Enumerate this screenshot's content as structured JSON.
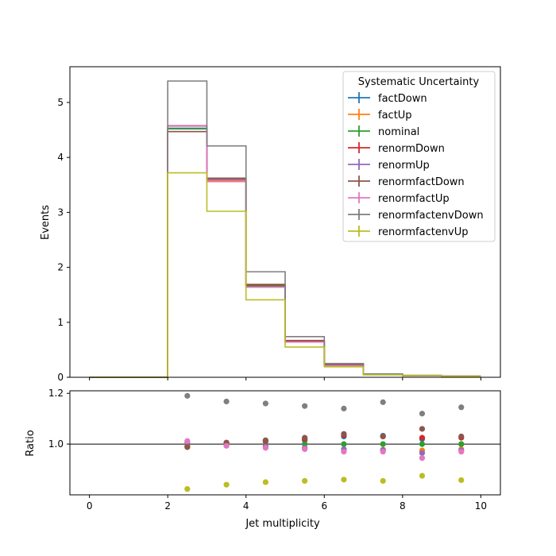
{
  "chart_data": [
    {
      "type": "line",
      "subtype": "step-histogram",
      "title": "",
      "xlabel": "",
      "ylabel": "Events",
      "xlim": [
        -0.5,
        10.5
      ],
      "ylim": [
        0,
        5.65
      ],
      "x_edges": [
        0,
        1,
        2,
        3,
        4,
        5,
        6,
        7,
        8,
        9,
        10
      ],
      "y_ticks": [
        "0",
        "1",
        "2",
        "3",
        "4",
        "5"
      ],
      "legend_title": "Systematic Uncertainty",
      "legend_position": "top-right",
      "series": [
        {
          "name": "factDown",
          "color": "#1f77b4",
          "values": [
            0,
            0,
            4.52,
            3.62,
            1.68,
            0.66,
            0.23,
            0.05,
            0.03,
            0.02
          ]
        },
        {
          "name": "factUp",
          "color": "#ff7f0e",
          "values": [
            0,
            0,
            4.53,
            3.58,
            1.65,
            0.64,
            0.22,
            0.05,
            0.03,
            0.02
          ]
        },
        {
          "name": "nominal",
          "color": "#2ca02c",
          "values": [
            0,
            0,
            4.53,
            3.6,
            1.66,
            0.65,
            0.22,
            0.05,
            0.03,
            0.02
          ]
        },
        {
          "name": "renormDown",
          "color": "#d62728",
          "values": [
            0,
            0,
            4.47,
            3.62,
            1.68,
            0.66,
            0.23,
            0.05,
            0.03,
            0.02
          ]
        },
        {
          "name": "renormUp",
          "color": "#9467bd",
          "values": [
            0,
            0,
            4.57,
            3.6,
            1.64,
            0.64,
            0.22,
            0.05,
            0.03,
            0.02
          ]
        },
        {
          "name": "renormfactDown",
          "color": "#8c564b",
          "values": [
            0,
            0,
            4.47,
            3.62,
            1.69,
            0.67,
            0.23,
            0.05,
            0.03,
            0.02
          ]
        },
        {
          "name": "renormfactUp",
          "color": "#e377c2",
          "values": [
            0,
            0,
            4.58,
            3.56,
            1.64,
            0.64,
            0.21,
            0.05,
            0.03,
            0.02
          ]
        },
        {
          "name": "renormfactenvDown",
          "color": "#7f7f7f",
          "values": [
            0,
            0,
            5.39,
            4.21,
            1.92,
            0.74,
            0.25,
            0.06,
            0.035,
            0.025
          ]
        },
        {
          "name": "renormfactenvUp",
          "color": "#bcbd22",
          "values": [
            0,
            0,
            3.72,
            3.02,
            1.41,
            0.55,
            0.19,
            0.045,
            0.03,
            0.02
          ]
        }
      ]
    },
    {
      "type": "scatter",
      "title": "",
      "xlabel": "Jet multiplicity",
      "ylabel": "Ratio",
      "xlim": [
        -0.5,
        10.5
      ],
      "ylim": [
        0.8,
        1.21
      ],
      "x_ticks": [
        "0",
        "2",
        "4",
        "6",
        "8",
        "10"
      ],
      "y_ticks": [
        "1.0",
        "1.2"
      ],
      "reference_line": 1.0,
      "x": [
        2.5,
        3.5,
        4.5,
        5.5,
        6.5,
        7.5,
        8.5,
        9.5
      ],
      "series": [
        {
          "name": "factDown",
          "color": "#1f77b4",
          "values": [
            1.0,
            1.005,
            1.012,
            1.015,
            1.03,
            1.033,
            1.02,
            1.0
          ]
        },
        {
          "name": "factUp",
          "color": "#ff7f0e",
          "values": [
            1.0,
            0.995,
            0.99,
            0.985,
            0.98,
            0.978,
            0.975,
            0.98
          ]
        },
        {
          "name": "nominal",
          "color": "#2ca02c",
          "values": [
            1.0,
            1.0,
            1.0,
            1.0,
            1.0,
            1.0,
            1.0,
            1.0
          ]
        },
        {
          "name": "renormDown",
          "color": "#d62728",
          "values": [
            0.99,
            1.005,
            1.012,
            1.02,
            1.035,
            1.03,
            1.025,
            1.025
          ]
        },
        {
          "name": "renormUp",
          "color": "#9467bd",
          "values": [
            1.008,
            0.997,
            0.99,
            0.985,
            0.98,
            0.977,
            0.965,
            0.975
          ]
        },
        {
          "name": "renormfactDown",
          "color": "#8c564b",
          "values": [
            0.988,
            1.006,
            1.015,
            1.025,
            1.04,
            1.03,
            1.06,
            1.03
          ]
        },
        {
          "name": "renormfactUp",
          "color": "#e377c2",
          "values": [
            1.012,
            0.993,
            0.985,
            0.98,
            0.97,
            0.97,
            0.945,
            0.97
          ]
        },
        {
          "name": "renormfactenvDown",
          "color": "#7f7f7f",
          "values": [
            1.19,
            1.168,
            1.16,
            1.15,
            1.14,
            1.165,
            1.12,
            1.145
          ]
        },
        {
          "name": "renormfactenvUp",
          "color": "#bcbd22",
          "values": [
            0.823,
            0.84,
            0.85,
            0.855,
            0.86,
            0.855,
            0.875,
            0.858
          ]
        }
      ]
    }
  ]
}
